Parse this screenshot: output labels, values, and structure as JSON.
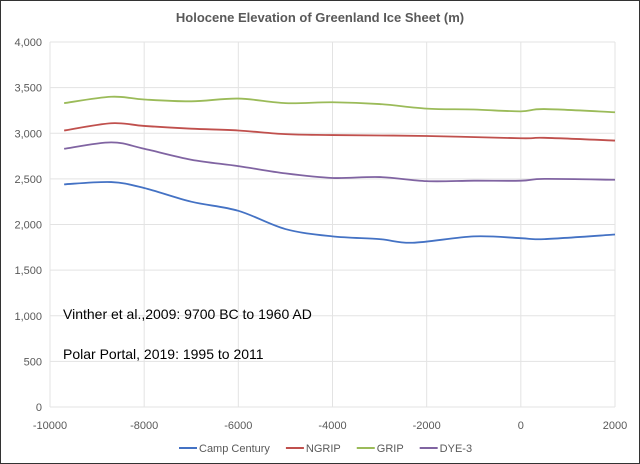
{
  "chart_data": {
    "type": "line",
    "title": "Holocene Elevation of Greenland Ice Sheet (m)",
    "xlim": [
      -10000,
      2000
    ],
    "ylim": [
      0,
      4000
    ],
    "xticks": [
      -10000,
      -8000,
      -6000,
      -4000,
      -2000,
      0,
      2000
    ],
    "yticks": [
      "0",
      "500",
      "1,000",
      "1,500",
      "2,000",
      "2,500",
      "3,000",
      "3,500",
      "4,000"
    ],
    "grid": true,
    "legend": "bottom",
    "annotations": [
      "Vinther et al.,2009: 9700 BC to 1960 AD",
      "Polar Portal, 2019: 1995 to 2011"
    ],
    "series": [
      {
        "name": "Camp Century",
        "color": "#4472C4",
        "x": [
          -9700,
          -8700,
          -8000,
          -7000,
          -6000,
          -5000,
          -4000,
          -3000,
          -2300,
          -1000,
          0,
          500,
          2000
        ],
        "y": [
          2440,
          2465,
          2400,
          2250,
          2150,
          1950,
          1870,
          1840,
          1800,
          1870,
          1850,
          1840,
          1890
        ]
      },
      {
        "name": "NGRIP",
        "color": "#C0504D",
        "x": [
          -9700,
          -8700,
          -8000,
          -7000,
          -6000,
          -5000,
          -4000,
          -2000,
          0,
          500,
          2000
        ],
        "y": [
          3030,
          3110,
          3080,
          3050,
          3030,
          2990,
          2980,
          2970,
          2945,
          2950,
          2920
        ]
      },
      {
        "name": "GRIP",
        "color": "#9BBB59",
        "x": [
          -9700,
          -8700,
          -8000,
          -7000,
          -6000,
          -5000,
          -4000,
          -3000,
          -2000,
          -1000,
          0,
          500,
          2000
        ],
        "y": [
          3330,
          3400,
          3370,
          3350,
          3380,
          3330,
          3340,
          3320,
          3270,
          3260,
          3240,
          3265,
          3230
        ]
      },
      {
        "name": "DYE-3",
        "color": "#8064A2",
        "x": [
          -9700,
          -8700,
          -8000,
          -7000,
          -6000,
          -5000,
          -4000,
          -3000,
          -2000,
          -1000,
          0,
          500,
          2000
        ],
        "y": [
          2830,
          2900,
          2830,
          2710,
          2640,
          2560,
          2510,
          2520,
          2475,
          2480,
          2480,
          2500,
          2490
        ]
      }
    ]
  }
}
